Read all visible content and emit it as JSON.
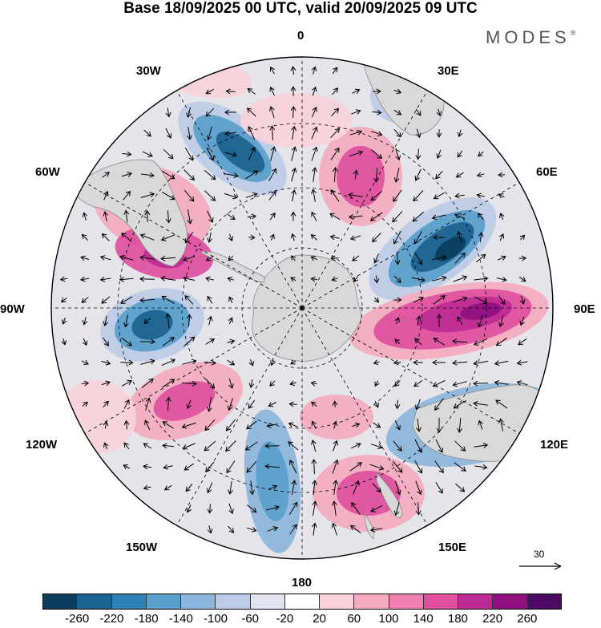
{
  "title": "Base 18/09/2025 00 UTC, valid 20/09/2025 09 UTC",
  "logo": {
    "text": "MODES",
    "mark": "®"
  },
  "longitude_labels": {
    "lon_0": "0",
    "lon_30e": "30E",
    "lon_60e": "60E",
    "lon_90e": "90E",
    "lon_120e": "120E",
    "lon_150e": "150E",
    "lon_180": "180",
    "lon_150w": "150W",
    "lon_120w": "120W",
    "lon_90w": "90W",
    "lon_60w": "60W",
    "lon_30w": "30W"
  },
  "reference_vector": {
    "label": "30",
    "icon": "arrow-right-icon"
  },
  "colorbar": {
    "ticks": [
      "-260",
      "-220",
      "-180",
      "-140",
      "-100",
      "-60",
      "-20",
      "20",
      "60",
      "100",
      "140",
      "180",
      "220",
      "260"
    ],
    "colors": [
      "#0b3d5c",
      "#1a628f",
      "#2f82b5",
      "#5aa0cc",
      "#8cb6db",
      "#bccbe6",
      "#e2e3f1",
      "#ffffff",
      "#f8d3da",
      "#f4abbf",
      "#ef7fae",
      "#e0509f",
      "#be2a93",
      "#8e117f",
      "#4d0a64"
    ]
  },
  "map": {
    "projection": "south-polar-stereographic",
    "neutral_color": "#e4e4ea",
    "land_color": "#d9d9d9"
  }
}
